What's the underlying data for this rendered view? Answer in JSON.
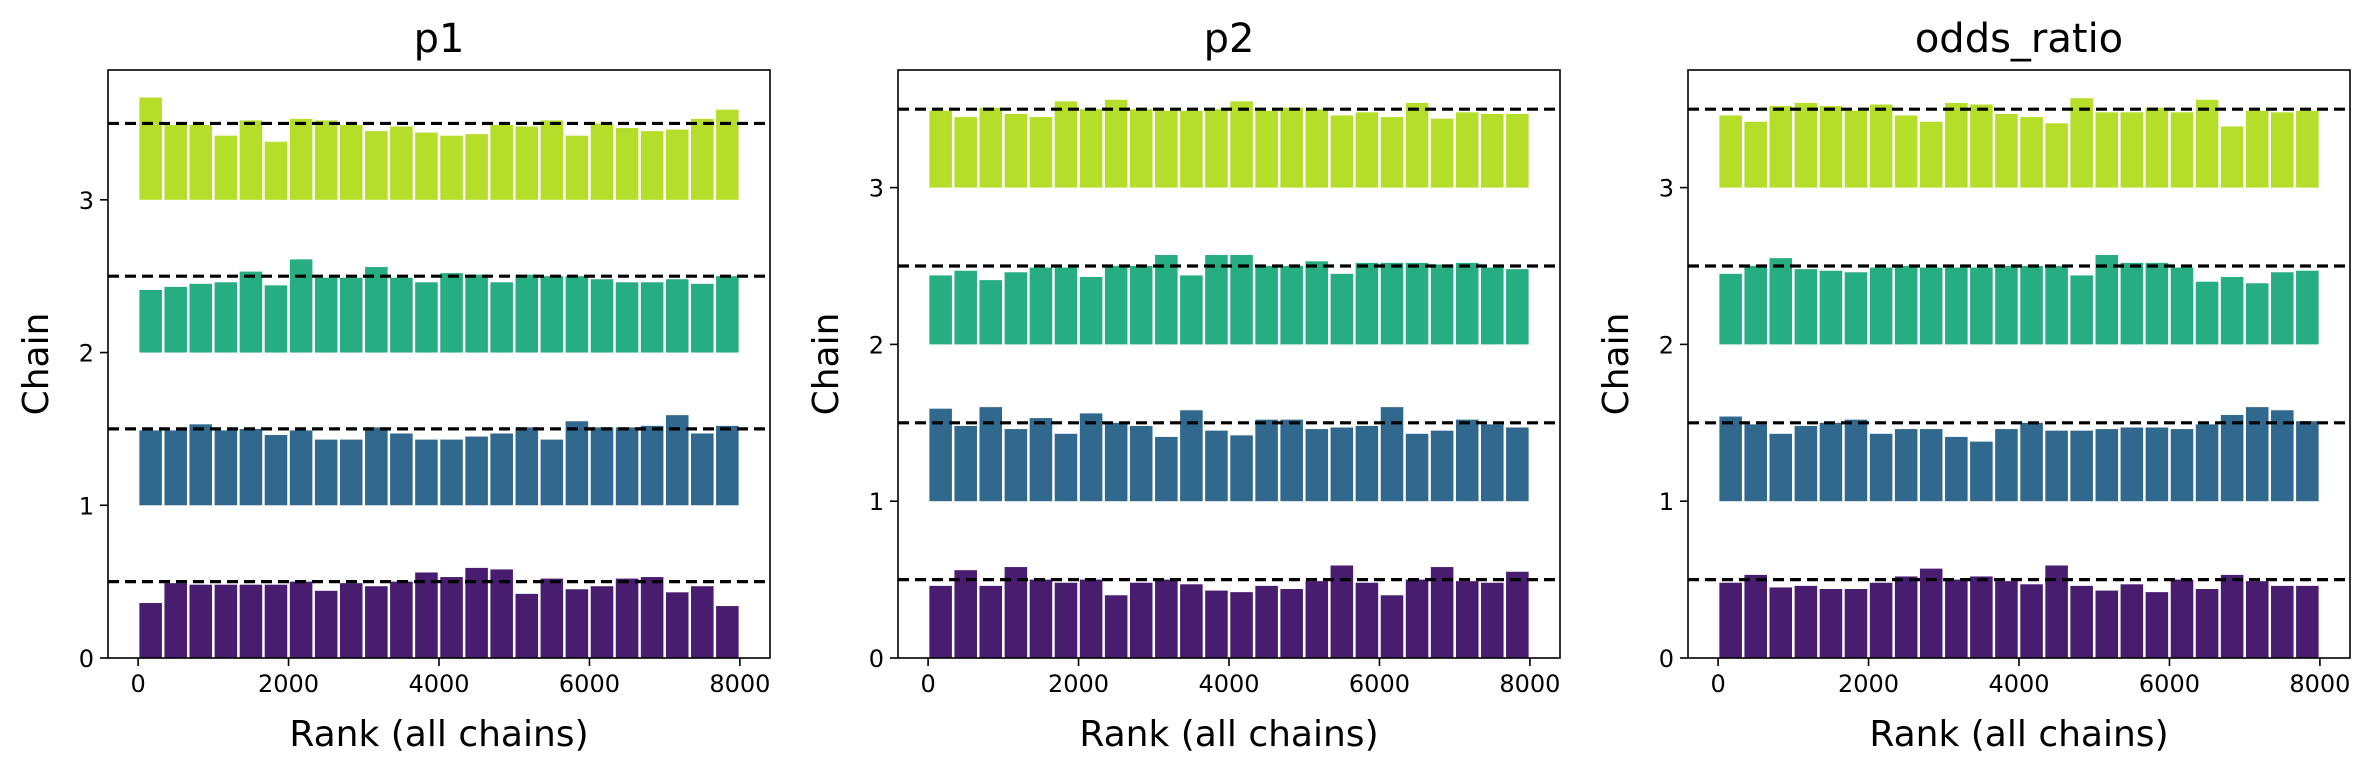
{
  "chart_data": [
    {
      "type": "bar",
      "title": "p1",
      "xlabel": "Rank (all chains)",
      "ylabel": "Chain",
      "xlim": [
        -400,
        8400
      ],
      "ylim": [
        0,
        3.85
      ],
      "xticks": [
        "0",
        "2000",
        "4000",
        "6000",
        "8000"
      ],
      "yticks": [
        "0",
        "1",
        "2",
        "3"
      ],
      "bin_width": 333,
      "bins_x": [
        167,
        500,
        833,
        1167,
        1500,
        1833,
        2167,
        2500,
        2833,
        3167,
        3500,
        3833,
        4167,
        4500,
        4833,
        5167,
        5500,
        5833,
        6167,
        6500,
        6833,
        7167,
        7500,
        7833
      ],
      "reference_level": 0.5,
      "series": [
        {
          "color": "#481c6e",
          "baseline": 0,
          "values": [
            0.36,
            0.49,
            0.48,
            0.48,
            0.48,
            0.48,
            0.5,
            0.44,
            0.49,
            0.47,
            0.5,
            0.56,
            0.53,
            0.59,
            0.58,
            0.42,
            0.52,
            0.45,
            0.47,
            0.52,
            0.53,
            0.43,
            0.47,
            0.34
          ]
        },
        {
          "color": "#31688e",
          "baseline": 1,
          "values": [
            0.49,
            0.49,
            0.53,
            0.49,
            0.5,
            0.46,
            0.49,
            0.43,
            0.43,
            0.51,
            0.47,
            0.43,
            0.43,
            0.45,
            0.47,
            0.51,
            0.43,
            0.55,
            0.51,
            0.51,
            0.52,
            0.59,
            0.47,
            0.52
          ]
        },
        {
          "color": "#26ad81",
          "baseline": 2,
          "values": [
            0.41,
            0.43,
            0.45,
            0.46,
            0.53,
            0.44,
            0.61,
            0.49,
            0.49,
            0.56,
            0.49,
            0.46,
            0.52,
            0.51,
            0.46,
            0.51,
            0.5,
            0.5,
            0.48,
            0.46,
            0.46,
            0.48,
            0.45,
            0.5
          ]
        },
        {
          "color": "#b5de2b",
          "baseline": 3,
          "values": [
            0.67,
            0.49,
            0.49,
            0.42,
            0.52,
            0.38,
            0.53,
            0.52,
            0.49,
            0.45,
            0.48,
            0.44,
            0.42,
            0.43,
            0.49,
            0.48,
            0.52,
            0.42,
            0.5,
            0.47,
            0.45,
            0.46,
            0.53,
            0.59
          ]
        }
      ]
    },
    {
      "type": "bar",
      "title": "p2",
      "xlabel": "Rank (all chains)",
      "ylabel": "Chain",
      "xlim": [
        -400,
        8400
      ],
      "ylim": [
        0,
        3.75
      ],
      "xticks": [
        "0",
        "2000",
        "4000",
        "6000",
        "8000"
      ],
      "yticks": [
        "0",
        "1",
        "2",
        "3"
      ],
      "bin_width": 333,
      "bins_x": [
        167,
        500,
        833,
        1167,
        1500,
        1833,
        2167,
        2500,
        2833,
        3167,
        3500,
        3833,
        4167,
        4500,
        4833,
        5167,
        5500,
        5833,
        6167,
        6500,
        6833,
        7167,
        7500,
        7833
      ],
      "reference_level": 0.5,
      "series": [
        {
          "color": "#481c6e",
          "baseline": 0,
          "values": [
            0.46,
            0.56,
            0.46,
            0.58,
            0.5,
            0.48,
            0.5,
            0.4,
            0.48,
            0.5,
            0.47,
            0.43,
            0.42,
            0.46,
            0.44,
            0.49,
            0.59,
            0.48,
            0.4,
            0.5,
            0.58,
            0.49,
            0.48,
            0.55
          ]
        },
        {
          "color": "#31688e",
          "baseline": 1,
          "values": [
            0.59,
            0.48,
            0.6,
            0.46,
            0.53,
            0.43,
            0.56,
            0.5,
            0.48,
            0.41,
            0.58,
            0.45,
            0.42,
            0.52,
            0.52,
            0.46,
            0.47,
            0.48,
            0.6,
            0.43,
            0.45,
            0.52,
            0.49,
            0.47
          ]
        },
        {
          "color": "#26ad81",
          "baseline": 2,
          "values": [
            0.44,
            0.47,
            0.41,
            0.46,
            0.49,
            0.49,
            0.43,
            0.5,
            0.5,
            0.57,
            0.44,
            0.57,
            0.57,
            0.5,
            0.5,
            0.53,
            0.45,
            0.52,
            0.52,
            0.52,
            0.51,
            0.52,
            0.49,
            0.48
          ]
        },
        {
          "color": "#b5de2b",
          "baseline": 3,
          "values": [
            0.49,
            0.45,
            0.51,
            0.47,
            0.45,
            0.55,
            0.5,
            0.56,
            0.5,
            0.49,
            0.49,
            0.5,
            0.55,
            0.49,
            0.51,
            0.5,
            0.46,
            0.48,
            0.45,
            0.54,
            0.44,
            0.48,
            0.47,
            0.47
          ]
        }
      ]
    },
    {
      "type": "bar",
      "title": "odds_ratio",
      "xlabel": "Rank (all chains)",
      "ylabel": "Chain",
      "xlim": [
        -400,
        8400
      ],
      "ylim": [
        0,
        3.75
      ],
      "xticks": [
        "0",
        "2000",
        "4000",
        "6000",
        "8000"
      ],
      "yticks": [
        "0",
        "1",
        "2",
        "3"
      ],
      "bin_width": 333,
      "bins_x": [
        167,
        500,
        833,
        1167,
        1500,
        1833,
        2167,
        2500,
        2833,
        3167,
        3500,
        3833,
        4167,
        4500,
        4833,
        5167,
        5500,
        5833,
        6167,
        6500,
        6833,
        7167,
        7500,
        7833
      ],
      "reference_level": 0.5,
      "series": [
        {
          "color": "#481c6e",
          "baseline": 0,
          "values": [
            0.48,
            0.53,
            0.45,
            0.46,
            0.44,
            0.44,
            0.48,
            0.52,
            0.57,
            0.5,
            0.52,
            0.49,
            0.47,
            0.59,
            0.46,
            0.43,
            0.47,
            0.42,
            0.5,
            0.44,
            0.53,
            0.49,
            0.46,
            0.46
          ]
        },
        {
          "color": "#31688e",
          "baseline": 1,
          "values": [
            0.54,
            0.49,
            0.43,
            0.48,
            0.5,
            0.52,
            0.43,
            0.46,
            0.46,
            0.41,
            0.38,
            0.46,
            0.5,
            0.45,
            0.45,
            0.46,
            0.47,
            0.47,
            0.46,
            0.49,
            0.55,
            0.6,
            0.58,
            0.51
          ]
        },
        {
          "color": "#26ad81",
          "baseline": 2,
          "values": [
            0.45,
            0.5,
            0.55,
            0.48,
            0.47,
            0.46,
            0.49,
            0.5,
            0.49,
            0.49,
            0.49,
            0.5,
            0.5,
            0.5,
            0.44,
            0.57,
            0.52,
            0.52,
            0.49,
            0.4,
            0.43,
            0.39,
            0.46,
            0.47
          ]
        },
        {
          "color": "#b5de2b",
          "baseline": 3,
          "values": [
            0.46,
            0.42,
            0.52,
            0.54,
            0.52,
            0.49,
            0.53,
            0.46,
            0.42,
            0.54,
            0.53,
            0.47,
            0.45,
            0.41,
            0.57,
            0.48,
            0.48,
            0.51,
            0.48,
            0.56,
            0.39,
            0.49,
            0.48,
            0.49
          ]
        }
      ]
    }
  ]
}
